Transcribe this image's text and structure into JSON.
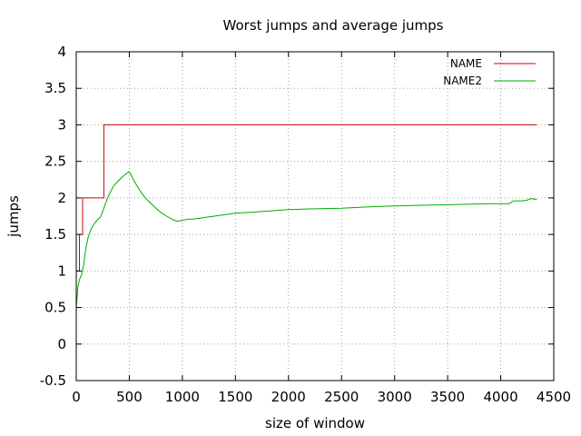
{
  "chart_data": {
    "type": "line",
    "title": "Worst jumps and average jumps",
    "xlabel": "size of window",
    "ylabel": "jumps",
    "xlim": [
      0,
      4500
    ],
    "ylim": [
      -0.5,
      4
    ],
    "xticks": [
      0,
      500,
      1000,
      1500,
      2000,
      2500,
      3000,
      3500,
      4000,
      4500
    ],
    "yticks": [
      -0.5,
      0,
      0.5,
      1,
      1.5,
      2,
      2.5,
      3,
      3.5,
      4
    ],
    "grid": true,
    "legend_position": "top-right",
    "series": [
      {
        "name": "NAME",
        "color": "#cc0000",
        "step": true,
        "x": [
          0,
          30,
          30,
          60,
          60,
          260,
          260,
          4340
        ],
        "y": [
          1,
          1,
          1.5,
          1.5,
          2,
          2,
          3,
          3
        ]
      },
      {
        "name": "NAME2",
        "color": "#00aa00",
        "step": false,
        "x": [
          0,
          15,
          30,
          50,
          70,
          90,
          110,
          140,
          170,
          200,
          230,
          260,
          300,
          350,
          400,
          450,
          500,
          550,
          600,
          650,
          700,
          750,
          800,
          850,
          900,
          950,
          1000,
          1050,
          1100,
          1200,
          1300,
          1400,
          1500,
          1700,
          1900,
          2000,
          2200,
          2500,
          2800,
          3000,
          3300,
          3600,
          3900,
          4080,
          4120,
          4200,
          4250,
          4280,
          4340
        ],
        "y": [
          0.5,
          0.78,
          0.88,
          0.95,
          1.08,
          1.3,
          1.45,
          1.58,
          1.65,
          1.7,
          1.74,
          1.86,
          2.02,
          2.16,
          2.24,
          2.31,
          2.36,
          2.22,
          2.1,
          2.0,
          1.93,
          1.86,
          1.8,
          1.75,
          1.71,
          1.68,
          1.69,
          1.71,
          1.71,
          1.73,
          1.75,
          1.77,
          1.79,
          1.81,
          1.83,
          1.84,
          1.85,
          1.86,
          1.88,
          1.89,
          1.9,
          1.91,
          1.92,
          1.92,
          1.96,
          1.96,
          1.97,
          1.99,
          1.98
        ]
      }
    ]
  }
}
